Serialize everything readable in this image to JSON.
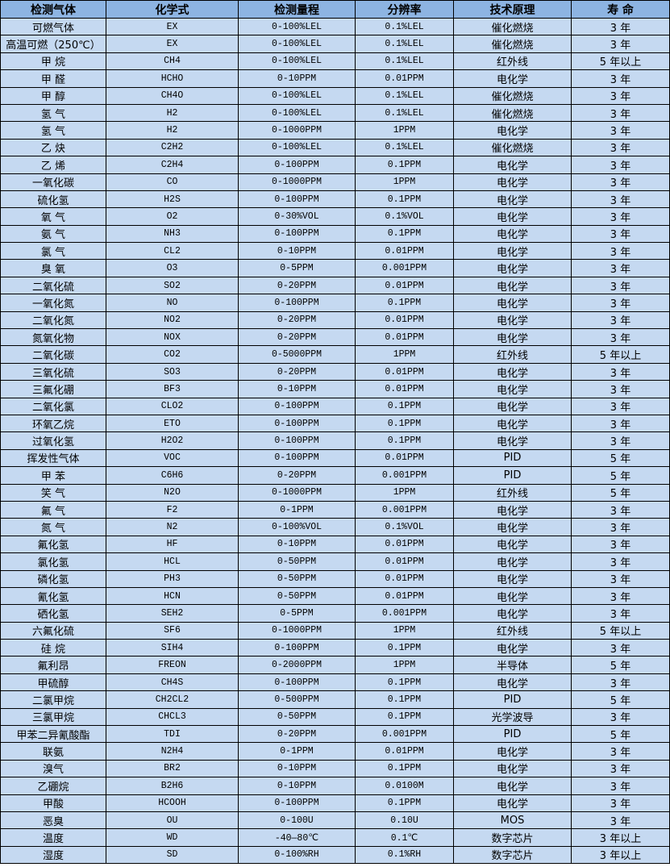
{
  "table": {
    "headers": [
      "检测气体",
      "化学式",
      "检测量程",
      "分辨率",
      "技术原理",
      "寿 命"
    ],
    "rows": [
      [
        "可燃气体",
        "EX",
        "0-100%LEL",
        "0.1%LEL",
        "催化燃烧",
        "3 年"
      ],
      [
        "高温可燃（250℃）",
        "EX",
        "0-100%LEL",
        "0.1%LEL",
        "催化燃烧",
        "3 年"
      ],
      [
        "甲 烷",
        "CH4",
        "0-100%LEL",
        "0.1%LEL",
        "红外线",
        "5 年以上"
      ],
      [
        "甲 醛",
        "HCHO",
        "0-10PPM",
        "0.01PPM",
        "电化学",
        "3 年"
      ],
      [
        "甲 醇",
        "CH4O",
        "0-100%LEL",
        "0.1%LEL",
        "催化燃烧",
        "3 年"
      ],
      [
        "氢 气",
        "H2",
        "0-100%LEL",
        "0.1%LEL",
        "催化燃烧",
        "3 年"
      ],
      [
        "氢 气",
        "H2",
        "0-1000PPM",
        "1PPM",
        "电化学",
        "3 年"
      ],
      [
        "乙 炔",
        "C2H2",
        "0-100%LEL",
        "0.1%LEL",
        "催化燃烧",
        "3 年"
      ],
      [
        "乙 烯",
        "C2H4",
        "0-100PPM",
        "0.1PPM",
        "电化学",
        "3 年"
      ],
      [
        "一氧化碳",
        "CO",
        "0-1000PPM",
        "1PPM",
        "电化学",
        "3 年"
      ],
      [
        "硫化氢",
        "H2S",
        "0-100PPM",
        "0.1PPM",
        "电化学",
        "3 年"
      ],
      [
        "氧 气",
        "O2",
        "0-30%VOL",
        "0.1%VOL",
        "电化学",
        "3 年"
      ],
      [
        "氨 气",
        "NH3",
        "0-100PPM",
        "0.1PPM",
        "电化学",
        "3 年"
      ],
      [
        "氯 气",
        "CL2",
        "0-10PPM",
        "0.01PPM",
        "电化学",
        "3 年"
      ],
      [
        "臭 氧",
        "O3",
        "0-5PPM",
        "0.001PPM",
        "电化学",
        "3 年"
      ],
      [
        "二氧化硫",
        "SO2",
        "0-20PPM",
        "0.01PPM",
        "电化学",
        "3 年"
      ],
      [
        "一氧化氮",
        "NO",
        "0-100PPM",
        "0.1PPM",
        "电化学",
        "3 年"
      ],
      [
        "二氧化氮",
        "NO2",
        "0-20PPM",
        "0.01PPM",
        "电化学",
        "3 年"
      ],
      [
        "氮氧化物",
        "NOX",
        "0-20PPM",
        "0.01PPM",
        "电化学",
        "3 年"
      ],
      [
        "二氧化碳",
        "CO2",
        "0-5000PPM",
        "1PPM",
        "红外线",
        "5 年以上"
      ],
      [
        "三氧化硫",
        "SO3",
        "0-20PPM",
        "0.01PPM",
        "电化学",
        "3 年"
      ],
      [
        "三氟化硼",
        "BF3",
        "0-10PPM",
        "0.01PPM",
        "电化学",
        "3 年"
      ],
      [
        "二氧化氯",
        "CLO2",
        "0-100PPM",
        "0.1PPM",
        "电化学",
        "3 年"
      ],
      [
        "环氧乙烷",
        "ETO",
        "0-100PPM",
        "0.1PPM",
        "电化学",
        "3 年"
      ],
      [
        "过氧化氢",
        "H2O2",
        "0-100PPM",
        "0.1PPM",
        "电化学",
        "3 年"
      ],
      [
        "挥发性气体",
        "VOC",
        "0-100PPM",
        "0.01PPM",
        "PID",
        "5 年"
      ],
      [
        "甲 苯",
        "C6H6",
        "0-20PPM",
        "0.001PPM",
        "PID",
        "5 年"
      ],
      [
        "笑 气",
        "N2O",
        "0-1000PPM",
        "1PPM",
        "红外线",
        "5 年"
      ],
      [
        "氟 气",
        "F2",
        "0-1PPM",
        "0.001PPM",
        "电化学",
        "3 年"
      ],
      [
        "氮 气",
        "N2",
        "0-100%VOL",
        "0.1%VOL",
        "电化学",
        "3 年"
      ],
      [
        "氟化氢",
        "HF",
        "0-10PPM",
        "0.01PPM",
        "电化学",
        "3 年"
      ],
      [
        "氯化氢",
        "HCL",
        "0-50PPM",
        "0.01PPM",
        "电化学",
        "3 年"
      ],
      [
        "磷化氢",
        "PH3",
        "0-50PPM",
        "0.01PPM",
        "电化学",
        "3 年"
      ],
      [
        "氰化氢",
        "HCN",
        "0-50PPM",
        "0.01PPM",
        "电化学",
        "3 年"
      ],
      [
        "硒化氢",
        "SEH2",
        "0-5PPM",
        "0.001PPM",
        "电化学",
        "3 年"
      ],
      [
        "六氟化硫",
        "SF6",
        "0-1000PPM",
        "1PPM",
        "红外线",
        "5 年以上"
      ],
      [
        "硅 烷",
        "SIH4",
        "0-100PPM",
        "0.1PPM",
        "电化学",
        "3 年"
      ],
      [
        "氟利昂",
        "FREON",
        "0-2000PPM",
        "1PPM",
        "半导体",
        "5 年"
      ],
      [
        "甲硫醇",
        "CH4S",
        "0-100PPM",
        "0.1PPM",
        "电化学",
        "3 年"
      ],
      [
        "二氯甲烷",
        "CH2CL2",
        "0-500PPM",
        "0.1PPM",
        "PID",
        "5 年"
      ],
      [
        "三氯甲烷",
        "CHCL3",
        "0-50PPM",
        "0.1PPM",
        "光学波导",
        "3 年"
      ],
      [
        "甲苯二异氰酸酯",
        "TDI",
        "0-20PPM",
        "0.001PPM",
        "PID",
        "5 年"
      ],
      [
        "联氨",
        "N2H4",
        "0-1PPM",
        "0.01PPM",
        "电化学",
        "3 年"
      ],
      [
        "溴气",
        "BR2",
        "0-10PPM",
        "0.1PPM",
        "电化学",
        "3 年"
      ],
      [
        "乙硼烷",
        "B2H6",
        "0-10PPM",
        "0.0100M",
        "电化学",
        "3 年"
      ],
      [
        "甲酸",
        "HCOOH",
        "0-100PPM",
        "0.1PPM",
        "电化学",
        "3 年"
      ],
      [
        "恶臭",
        "OU",
        "0-100U",
        "0.10U",
        "MOS",
        "3 年"
      ],
      [
        "温度",
        "WD",
        "-40—80℃",
        "0.1℃",
        "数字芯片",
        "3 年以上"
      ],
      [
        "湿度",
        "SD",
        "0-100%RH",
        "0.1%RH",
        "数字芯片",
        "3 年以上"
      ]
    ]
  },
  "colors": {
    "header_bg": "#8db4e2",
    "row_bg": "#c5d9f1",
    "border": "#000000"
  }
}
